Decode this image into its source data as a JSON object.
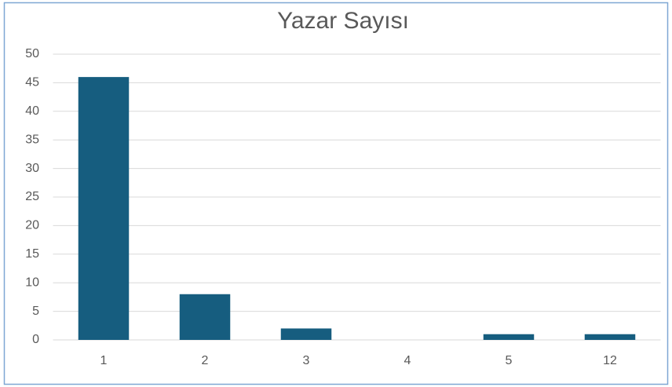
{
  "chart_data": {
    "type": "bar",
    "title": "Yazar Sayısı",
    "categories": [
      "1",
      "2",
      "3",
      "4",
      "5",
      "12"
    ],
    "values": [
      46,
      8,
      2,
      0,
      1,
      1
    ],
    "color": "#165d7f",
    "ylim": [
      0,
      50
    ],
    "yticks": [
      0,
      5,
      10,
      15,
      20,
      25,
      30,
      35,
      40,
      45,
      50
    ],
    "grid": true
  }
}
